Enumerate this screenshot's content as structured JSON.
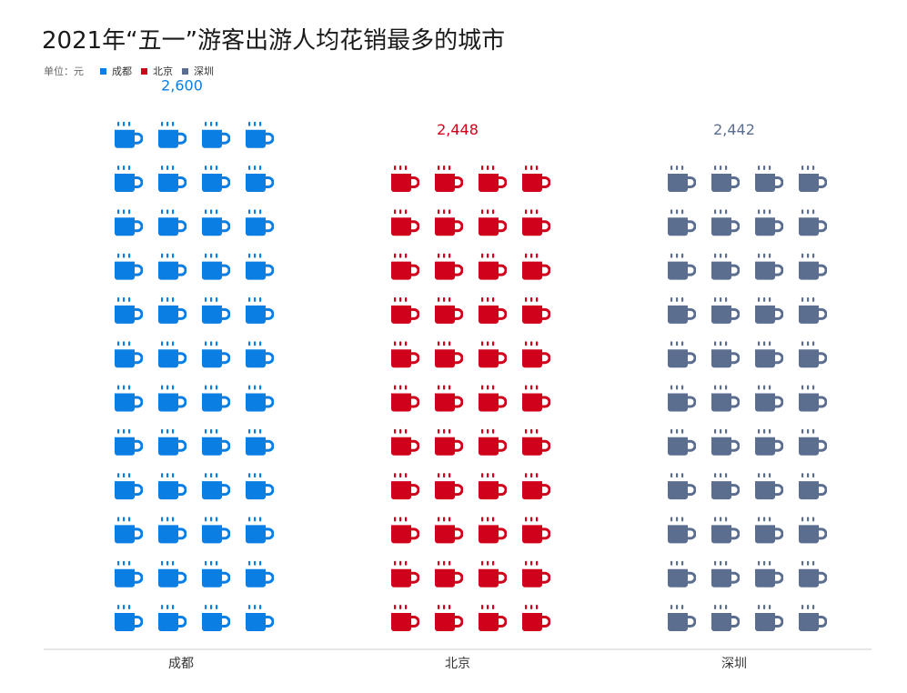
{
  "title": "2021年“五一”游客出游人均花销最多的城市",
  "unit_label": "单位：元",
  "legend": [
    {
      "label": "成都",
      "color": "#0a7ee3"
    },
    {
      "label": "北京",
      "color": "#d0021b"
    },
    {
      "label": "深圳",
      "color": "#5b6e90"
    }
  ],
  "chart_data": {
    "type": "bar",
    "categories": [
      "成都",
      "北京",
      "深圳"
    ],
    "values": [
      2600,
      2448,
      2442
    ],
    "value_labels": [
      "2,600",
      "2,448",
      "2,442"
    ],
    "colors": [
      "#0a7ee3",
      "#d0021b",
      "#5b6e90"
    ],
    "icon": "coffee-mug-icon",
    "icon_rows_shown": [
      12,
      11,
      11
    ],
    "icons_per_row": 4,
    "title": "2021年“五一”游客出游人均花销最多的城市",
    "ylabel": "单位：元",
    "grid": false,
    "legend_position": "top-left"
  }
}
